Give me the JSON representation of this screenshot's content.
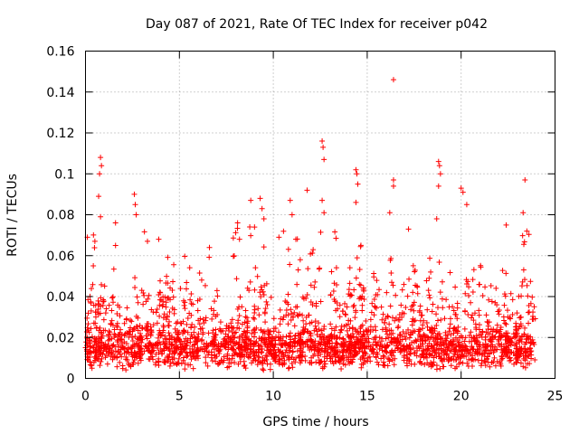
{
  "chart_data": {
    "type": "scatter",
    "title": "Day 087 of 2021, Rate Of TEC Index for receiver p042",
    "xlabel": "GPS time / hours",
    "ylabel": "ROTI / TECUs",
    "xlim": [
      0,
      25
    ],
    "ylim": [
      0,
      0.16
    ],
    "xticks": [
      0,
      5,
      10,
      15,
      20,
      25
    ],
    "xtick_labels": [
      "0",
      "5",
      "10",
      "15",
      "20",
      "25"
    ],
    "yticks": [
      0,
      0.02,
      0.04,
      0.06,
      0.08,
      0.1,
      0.12,
      0.14,
      0.16
    ],
    "ytick_labels": [
      "0",
      "0.02",
      "0.04",
      "0.06",
      "0.08",
      "0.1",
      "0.12",
      "0.14",
      "0.16"
    ],
    "grid": true,
    "marker": "plus",
    "color": "#ff0000",
    "series": [
      {
        "name": "ROTI",
        "notable_points": [
          {
            "x": 0.1,
            "y": 0.069
          },
          {
            "x": 0.5,
            "y": 0.067
          },
          {
            "x": 0.7,
            "y": 0.089
          },
          {
            "x": 0.75,
            "y": 0.1
          },
          {
            "x": 0.8,
            "y": 0.108
          },
          {
            "x": 0.85,
            "y": 0.104
          },
          {
            "x": 0.8,
            "y": 0.079
          },
          {
            "x": 1.6,
            "y": 0.076
          },
          {
            "x": 1.6,
            "y": 0.065
          },
          {
            "x": 2.6,
            "y": 0.09
          },
          {
            "x": 2.65,
            "y": 0.085
          },
          {
            "x": 2.7,
            "y": 0.08
          },
          {
            "x": 3.3,
            "y": 0.067
          },
          {
            "x": 3.9,
            "y": 0.068
          },
          {
            "x": 6.6,
            "y": 0.064
          },
          {
            "x": 8.1,
            "y": 0.076
          },
          {
            "x": 8.2,
            "y": 0.068
          },
          {
            "x": 8.8,
            "y": 0.087
          },
          {
            "x": 9.0,
            "y": 0.074
          },
          {
            "x": 9.3,
            "y": 0.088
          },
          {
            "x": 9.4,
            "y": 0.083
          },
          {
            "x": 9.5,
            "y": 0.078
          },
          {
            "x": 10.3,
            "y": 0.069
          },
          {
            "x": 10.9,
            "y": 0.087
          },
          {
            "x": 11.0,
            "y": 0.08
          },
          {
            "x": 11.2,
            "y": 0.068
          },
          {
            "x": 11.8,
            "y": 0.092
          },
          {
            "x": 12.6,
            "y": 0.116
          },
          {
            "x": 12.65,
            "y": 0.113
          },
          {
            "x": 12.7,
            "y": 0.107
          },
          {
            "x": 12.6,
            "y": 0.087
          },
          {
            "x": 12.7,
            "y": 0.081
          },
          {
            "x": 14.4,
            "y": 0.102
          },
          {
            "x": 14.45,
            "y": 0.1
          },
          {
            "x": 14.5,
            "y": 0.095
          },
          {
            "x": 14.4,
            "y": 0.086
          },
          {
            "x": 16.4,
            "y": 0.146
          },
          {
            "x": 16.4,
            "y": 0.097
          },
          {
            "x": 16.4,
            "y": 0.094
          },
          {
            "x": 16.2,
            "y": 0.081
          },
          {
            "x": 17.2,
            "y": 0.073
          },
          {
            "x": 18.8,
            "y": 0.106
          },
          {
            "x": 18.85,
            "y": 0.104
          },
          {
            "x": 18.9,
            "y": 0.1
          },
          {
            "x": 18.8,
            "y": 0.094
          },
          {
            "x": 18.7,
            "y": 0.078
          },
          {
            "x": 20.0,
            "y": 0.093
          },
          {
            "x": 20.1,
            "y": 0.091
          },
          {
            "x": 20.3,
            "y": 0.085
          },
          {
            "x": 22.4,
            "y": 0.075
          },
          {
            "x": 23.3,
            "y": 0.081
          },
          {
            "x": 23.4,
            "y": 0.097
          },
          {
            "x": 23.5,
            "y": 0.072
          }
        ]
      }
    ]
  }
}
